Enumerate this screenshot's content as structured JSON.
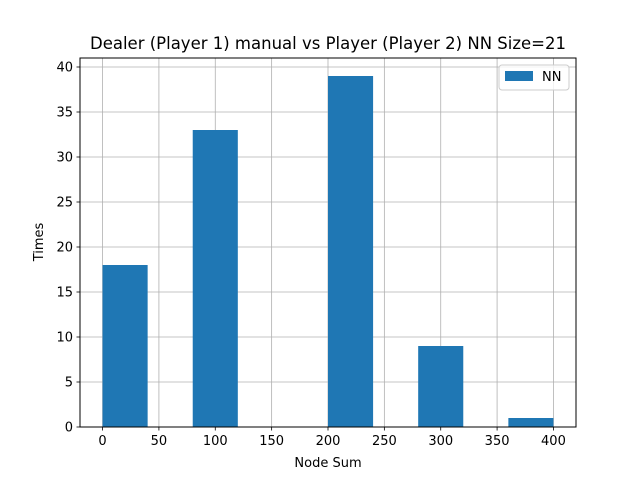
{
  "chart_data": {
    "type": "bar",
    "title": "Dealer (Player 1) manual vs Player (Player 2) NN Size=21",
    "xlabel": "Node Sum",
    "ylabel": "Times",
    "xlim": [
      -20,
      420
    ],
    "ylim": [
      0,
      41
    ],
    "xticks": [
      0,
      50,
      100,
      150,
      200,
      250,
      300,
      350,
      400
    ],
    "yticks": [
      0,
      5,
      10,
      15,
      20,
      25,
      30,
      35,
      40
    ],
    "grid": true,
    "legend_position": "top-right",
    "series": [
      {
        "name": "NN",
        "color": "#1f77b4",
        "bins": [
          {
            "x0": 0,
            "x1": 40,
            "value": 18
          },
          {
            "x0": 40,
            "x1": 80,
            "value": 0
          },
          {
            "x0": 80,
            "x1": 120,
            "value": 33
          },
          {
            "x0": 120,
            "x1": 160,
            "value": 0
          },
          {
            "x0": 160,
            "x1": 200,
            "value": 0
          },
          {
            "x0": 200,
            "x1": 240,
            "value": 39
          },
          {
            "x0": 240,
            "x1": 280,
            "value": 0
          },
          {
            "x0": 280,
            "x1": 320,
            "value": 9
          },
          {
            "x0": 320,
            "x1": 360,
            "value": 0
          },
          {
            "x0": 360,
            "x1": 400,
            "value": 1
          }
        ]
      }
    ]
  }
}
